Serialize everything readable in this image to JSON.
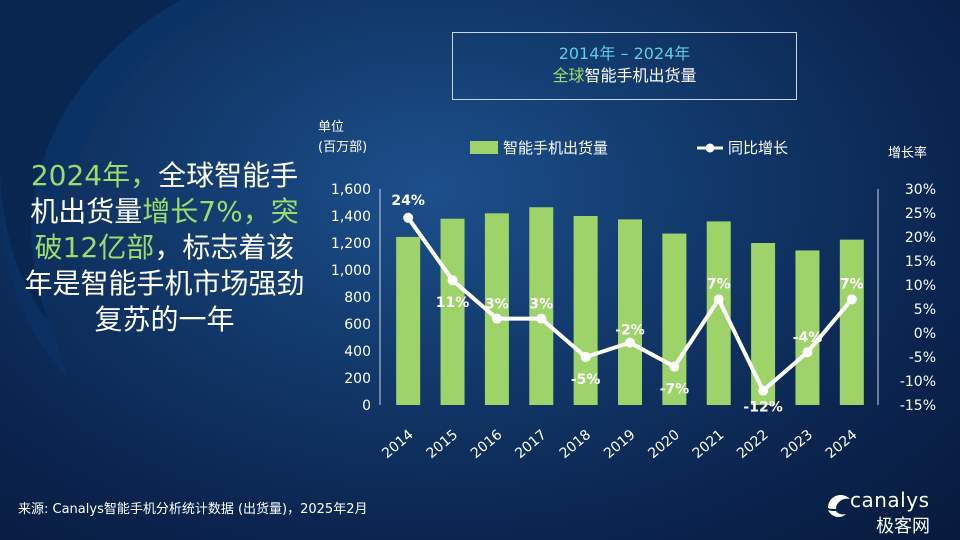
{
  "headline": {
    "part1": "2024年，",
    "part2": "全球智能手机出货量",
    "part3": "增长7%，",
    "part4": "突破12亿部",
    "part5": "，标志着该年是智能手机市场强劲复苏的一年"
  },
  "title": {
    "years": "2014年 – 2024年",
    "main_green": "全球",
    "main_rest": "智能手机出货量"
  },
  "footer": {
    "source": "来源: Canalys智能手机分析统计数据 (出货量)，2025年2月",
    "brand": "canalys",
    "watermark": "极客网"
  },
  "colors": {
    "bar": "#9ed36a",
    "line": "#ffffff",
    "accent_green": "#9ddb6b",
    "accent_cyan": "#5ad0e0"
  },
  "chart_data": {
    "type": "bar",
    "left_unit_label_line1": "单位",
    "left_unit_label_line2": "(百万部)",
    "right_axis_label": "增长率",
    "categories": [
      "2014",
      "2015",
      "2016",
      "2017",
      "2018",
      "2019",
      "2020",
      "2021",
      "2022",
      "2023",
      "2024"
    ],
    "series": [
      {
        "name": "智能手机出货量",
        "type": "bar",
        "axis": "left",
        "values": [
          1245,
          1380,
          1420,
          1465,
          1400,
          1375,
          1270,
          1360,
          1200,
          1145,
          1225
        ]
      },
      {
        "name": "同比增长",
        "type": "line",
        "axis": "right",
        "values": [
          24,
          11,
          3,
          3,
          -5,
          -2,
          -7,
          7,
          -12,
          -4,
          7
        ],
        "labels": [
          "24%",
          "11%",
          "3%",
          "3%",
          "-5%",
          "-2%",
          "-7%",
          "7%",
          "-12%",
          "-4%",
          "7%"
        ]
      }
    ],
    "left_ticks": [
      "0",
      "200",
      "400",
      "600",
      "800",
      "1,000",
      "1,200",
      "1,400",
      "1,600"
    ],
    "right_ticks": [
      "-15%",
      "-10%",
      "-5%",
      "0%",
      "5%",
      "10%",
      "15%",
      "20%",
      "25%",
      "30%"
    ],
    "ylim_left": [
      0,
      1600
    ],
    "ylim_right": [
      -15,
      30
    ],
    "legend_position": "top"
  }
}
